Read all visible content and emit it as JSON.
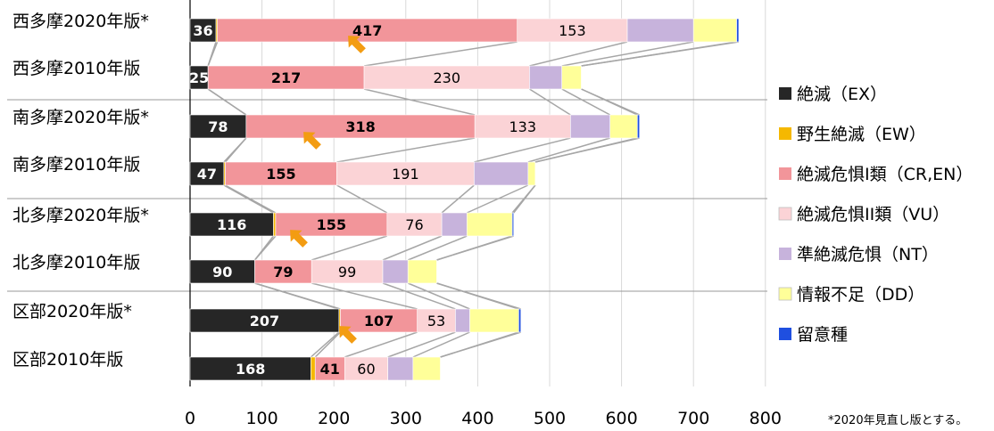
{
  "chart_data": {
    "type": "bar",
    "orientation": "horizontal",
    "stacked": true,
    "categories": [
      "西多摩2020年版*",
      "西多摩2010年版",
      "南多摩2020年版*",
      "南多摩2010年版",
      "北多摩2020年版*",
      "北多摩2010年版",
      "区部2020年版*",
      "区部2010年版"
    ],
    "series": [
      {
        "name": "絶滅（EX）",
        "color": "#262626",
        "values": [
          36,
          25,
          78,
          47,
          116,
          90,
          207,
          168
        ]
      },
      {
        "name": "野生絶滅（EW）",
        "color": "#F5B800",
        "values": [
          2,
          0,
          0,
          2,
          3,
          0,
          2,
          6
        ]
      },
      {
        "name": "絶滅危惧I類（CR,EN）",
        "color": "#F2959A",
        "values": [
          417,
          217,
          318,
          155,
          155,
          79,
          107,
          41
        ]
      },
      {
        "name": "絶滅危惧II類（VU）",
        "color": "#FBD3D6",
        "values": [
          153,
          230,
          133,
          191,
          76,
          99,
          53,
          60
        ]
      },
      {
        "name": "準絶滅危惧（NT）",
        "color": "#C7B3DC",
        "values": [
          92,
          45,
          55,
          75,
          35,
          35,
          20,
          35
        ]
      },
      {
        "name": "情報不足（DD）",
        "color": "#FFFF99",
        "values": [
          60,
          27,
          38,
          10,
          63,
          40,
          68,
          38
        ]
      },
      {
        "name": "留意種",
        "color": "#1F4FE0",
        "values": [
          3,
          0,
          3,
          0,
          2,
          0,
          3,
          0
        ]
      }
    ],
    "labeled_series": [
      0,
      2,
      3
    ],
    "bold_series": [
      0,
      2
    ],
    "xlim": [
      0,
      800
    ],
    "xticks": [
      0,
      100,
      200,
      300,
      400,
      500,
      600,
      700,
      800
    ],
    "grid": "vertical",
    "legend_position": "right",
    "arrow_color": "#F39C12"
  },
  "footnote": "*2020年見直し版とする。"
}
